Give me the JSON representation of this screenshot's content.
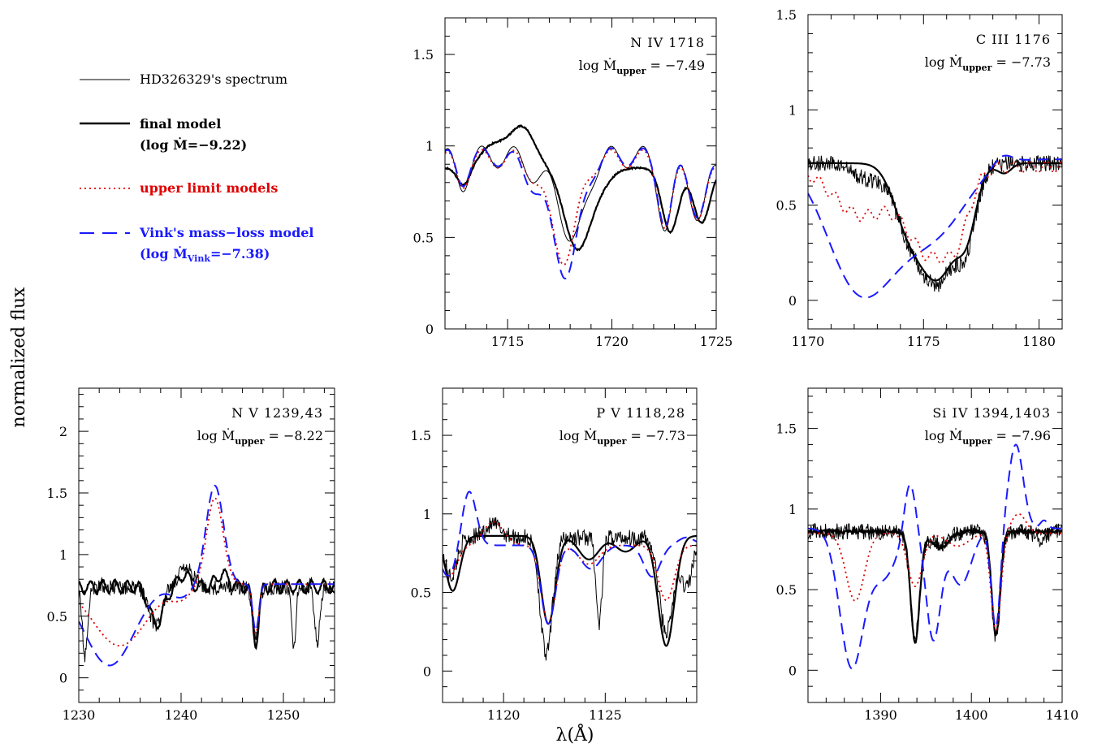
{
  "figure": {
    "ylabel": "normalized flux",
    "xlabel": "λ(Å)"
  },
  "legend": {
    "spectrum": {
      "label": "HD326329's spectrum",
      "color": "#000000"
    },
    "final": {
      "label": "final model",
      "sub": "(log Ṁ=−9.22)",
      "color": "#000000"
    },
    "upper": {
      "label": "upper limit models",
      "color": "#e00000"
    },
    "vink": {
      "label": "Vink's mass−loss model",
      "sub_pre": "(log Ṁ",
      "sub_subscript": "Vink",
      "sub_post": "=−7.38)",
      "color": "#1a1aff"
    }
  },
  "chart_data": [
    {
      "type": "line",
      "id": "n4",
      "title": "N IV 1718",
      "mdot_value": "−7.49",
      "xlim": [
        1712,
        1725
      ],
      "ylim": [
        0,
        1.7
      ],
      "xticks": [
        1715,
        1720,
        1725
      ],
      "yticks": [
        0,
        0.5,
        1,
        1.5
      ],
      "yticklabels": [
        "0",
        "0.5",
        "1",
        "1.5"
      ],
      "lines": [
        {
          "type": "gauss",
          "x": [
            1712,
            1725
          ],
          "base": 0.94,
          "slope": 0,
          "ripple": {
            "amp": 0.06,
            "period": 1.55,
            "phase": 0.6
          },
          "noise": 0,
          "dips": [
            [
              1712.8,
              -0.14,
              0.3
            ],
            [
              1718.15,
              -0.47,
              0.55
            ],
            [
              1722.6,
              -0.38,
              0.35
            ],
            [
              1724.2,
              -0.33,
              0.4
            ],
            [
              1716.6,
              -0.12,
              0.5
            ]
          ]
        },
        {
          "type": "gauss",
          "x": [
            1712,
            1725
          ],
          "base": 0.88,
          "slope": 0,
          "noise": 0.004,
          "seed": 11,
          "dips": [
            [
              1715.7,
              0.22,
              0.6
            ],
            [
              1714.3,
              0.12,
              0.6
            ],
            [
              1718.3,
              -0.42,
              0.6
            ],
            [
              1712.9,
              -0.1,
              0.3
            ],
            [
              1719.3,
              -0.1,
              0.6
            ],
            [
              1722.8,
              -0.35,
              0.4
            ],
            [
              1724.3,
              -0.3,
              0.4
            ]
          ]
        },
        {
          "type": "gauss",
          "x": [
            1712,
            1725
          ],
          "base": 0.93,
          "slope": 0,
          "ripple": {
            "amp": 0.05,
            "period": 1.55,
            "phase": 0.6
          },
          "noise": 0,
          "dips": [
            [
              1712.8,
              -0.12,
              0.3
            ],
            [
              1717.8,
              -0.5,
              0.6
            ],
            [
              1716.8,
              -0.12,
              0.6
            ],
            [
              1722.6,
              -0.36,
              0.35
            ],
            [
              1724.2,
              -0.32,
              0.4
            ]
          ]
        },
        {
          "type": "gauss",
          "x": [
            1712,
            1725
          ],
          "base": 0.94,
          "slope": 0,
          "ripple": {
            "amp": 0.05,
            "period": 1.55,
            "phase": 0.6
          },
          "noise": 0,
          "dips": [
            [
              1712.8,
              -0.12,
              0.3
            ],
            [
              1717.9,
              -0.58,
              0.6
            ],
            [
              1716.7,
              -0.18,
              0.7
            ],
            [
              1722.6,
              -0.36,
              0.35
            ],
            [
              1724.2,
              -0.32,
              0.4
            ]
          ]
        }
      ]
    },
    {
      "type": "line",
      "id": "c3",
      "title": "C III 1176",
      "mdot_value": "−7.73",
      "xlim": [
        1170,
        1181
      ],
      "ylim": [
        -0.15,
        1.5
      ],
      "xticks": [
        1170,
        1175,
        1180
      ],
      "yticks": [
        0,
        0.5,
        1,
        1.5
      ],
      "yticklabels": [
        "0",
        "0.5",
        "1",
        "1.5"
      ],
      "lines": [
        {
          "type": "gauss",
          "x": [
            1170,
            1181
          ],
          "base": 0.72,
          "slope": 0,
          "noise": 0.045,
          "seed": 5,
          "dips": [
            [
              1175.6,
              -0.62,
              0.9
            ],
            [
              1174.2,
              -0.2,
              0.6
            ],
            [
              1176.9,
              -0.25,
              0.4
            ],
            [
              1172.5,
              -0.08,
              0.6
            ]
          ]
        },
        {
          "type": "gauss",
          "x": [
            1170,
            1181
          ],
          "base": 0.72,
          "slope": 0,
          "noise": 0,
          "dips": [
            [
              1175.6,
              -0.6,
              0.9
            ],
            [
              1174.2,
              -0.2,
              0.6
            ],
            [
              1176.9,
              -0.22,
              0.4
            ],
            [
              1178.5,
              -0.05,
              0.3
            ]
          ]
        },
        {
          "type": "gauss",
          "x": [
            1170,
            1181
          ],
          "base": 0.7,
          "slope": 0,
          "noise": 0,
          "ripple": {
            "amp": 0.03,
            "period": 0.7,
            "phase": 0.1
          },
          "dips": [
            [
              1172.3,
              -0.25,
              1.2
            ],
            [
              1175.3,
              -0.45,
              1.0
            ],
            [
              1176.5,
              -0.2,
              0.5
            ]
          ]
        },
        {
          "type": "gauss",
          "x": [
            1170,
            1181
          ],
          "base": 0.74,
          "slope": 0,
          "noise": 0,
          "dips": [
            [
              1172.0,
              -0.55,
              1.3
            ],
            [
              1174.0,
              -0.35,
              1.5
            ],
            [
              1176.0,
              -0.22,
              1.2
            ],
            [
              1178.4,
              0.05,
              0.4
            ]
          ]
        }
      ]
    },
    {
      "type": "line",
      "id": "n5",
      "title": "N V 1239,43",
      "mdot_value": "−8.22",
      "xlim": [
        1230,
        1255
      ],
      "ylim": [
        -0.2,
        2.35
      ],
      "xticks": [
        1230,
        1240,
        1250
      ],
      "yticks": [
        0,
        0.5,
        1,
        1.5,
        2
      ],
      "yticklabels": [
        "0",
        "0.5",
        "1",
        "1.5",
        "2"
      ],
      "lines": [
        {
          "type": "gauss",
          "x": [
            1230,
            1255
          ],
          "base": 0.73,
          "slope": 0,
          "noise": 0.06,
          "seed": 21,
          "dips": [
            [
              1230.6,
              -0.55,
              0.25
            ],
            [
              1237.5,
              -0.3,
              0.6
            ],
            [
              1240.5,
              0.15,
              0.8
            ],
            [
              1247.3,
              -0.4,
              0.3
            ],
            [
              1251.0,
              -0.5,
              0.2
            ],
            [
              1253.3,
              -0.45,
              0.25
            ]
          ]
        },
        {
          "type": "gauss",
          "x": [
            1230,
            1255
          ],
          "base": 0.74,
          "slope": 0,
          "noise": 0.01,
          "seed": 3,
          "ripple": {
            "amp": 0.05,
            "period": 1.2,
            "phase": 0.3
          },
          "dips": [
            [
              1237.6,
              -0.3,
              0.7
            ],
            [
              1240.3,
              0.1,
              0.5
            ],
            [
              1247.3,
              -0.45,
              0.3
            ],
            [
              1244.0,
              0.1,
              0.6
            ]
          ]
        },
        {
          "type": "gauss",
          "x": [
            1230,
            1255
          ],
          "base": 0.76,
          "slope": 0,
          "noise": 0,
          "dips": [
            [
              1234.0,
              -0.5,
              2.6
            ],
            [
              1243.3,
              0.7,
              0.8
            ],
            [
              1247.3,
              -0.4,
              0.3
            ],
            [
              1240.0,
              -0.1,
              1.0
            ]
          ]
        },
        {
          "type": "gauss",
          "x": [
            1230,
            1255
          ],
          "base": 0.76,
          "slope": 0,
          "noise": 0,
          "dips": [
            [
              1233.0,
              -0.66,
              2.4
            ],
            [
              1243.3,
              0.8,
              0.85
            ],
            [
              1247.3,
              -0.38,
              0.3
            ],
            [
              1240.0,
              -0.1,
              1.0
            ]
          ]
        }
      ]
    },
    {
      "type": "line",
      "id": "p5",
      "title": "P V 1118,28",
      "mdot_value": "−7.73",
      "xlim": [
        1117,
        1129.5
      ],
      "ylim": [
        -0.2,
        1.8
      ],
      "xticks": [
        1120,
        1125
      ],
      "yticks": [
        0,
        0.5,
        1,
        1.5
      ],
      "yticklabels": [
        "0",
        "0.5",
        "1",
        "1.5"
      ],
      "lines": [
        {
          "type": "gauss",
          "x": [
            1117,
            1129.5
          ],
          "base": 0.85,
          "slope": 0,
          "noise": 0.055,
          "seed": 42,
          "dips": [
            [
              1117.4,
              -0.25,
              0.3
            ],
            [
              1122.1,
              -0.75,
              0.3
            ],
            [
              1124.7,
              -0.55,
              0.15
            ],
            [
              1128.0,
              -0.6,
              0.35
            ],
            [
              1129.0,
              -0.3,
              0.3
            ],
            [
              1119.5,
              0.08,
              0.4
            ]
          ]
        },
        {
          "type": "gauss",
          "x": [
            1117,
            1129.5
          ],
          "base": 0.86,
          "slope": 0,
          "noise": 0,
          "dips": [
            [
              1117.5,
              -0.35,
              0.35
            ],
            [
              1122.2,
              -0.56,
              0.35
            ],
            [
              1124.2,
              -0.15,
              0.5
            ],
            [
              1128.0,
              -0.7,
              0.4
            ],
            [
              1126.0,
              -0.1,
              0.5
            ]
          ]
        },
        {
          "type": "gauss",
          "x": [
            1117,
            1129.5
          ],
          "base": 0.8,
          "slope": 0,
          "noise": 0,
          "dips": [
            [
              1117.3,
              -0.2,
              0.4
            ],
            [
              1119.5,
              0.15,
              0.5
            ],
            [
              1122.2,
              -0.5,
              0.35
            ],
            [
              1124.2,
              -0.12,
              0.5
            ],
            [
              1128.0,
              -0.35,
              0.4
            ]
          ]
        },
        {
          "type": "gauss",
          "x": [
            1117,
            1129.5
          ],
          "base": 0.8,
          "slope": 0,
          "noise": 0,
          "dips": [
            [
              1117.3,
              -0.2,
              0.4
            ],
            [
              1118.3,
              0.35,
              0.35
            ],
            [
              1122.2,
              -0.5,
              0.35
            ],
            [
              1124.3,
              -0.15,
              0.5
            ],
            [
              1127.3,
              -0.2,
              0.4
            ],
            [
              1129.0,
              0.05,
              0.4
            ]
          ]
        }
      ]
    },
    {
      "type": "line",
      "id": "si4",
      "title": "Si IV 1394,1403",
      "mdot_value": "−7.96",
      "xlim": [
        1382,
        1410
      ],
      "ylim": [
        -0.2,
        1.75
      ],
      "xticks": [
        1390,
        1400,
        1410
      ],
      "yticks": [
        0,
        0.5,
        1,
        1.5
      ],
      "yticklabels": [
        "0",
        "0.5",
        "1",
        "1.5"
      ],
      "lines": [
        {
          "type": "gauss",
          "x": [
            1382,
            1410
          ],
          "base": 0.86,
          "slope": 0,
          "noise": 0.05,
          "seed": 77,
          "dips": [
            [
              1393.8,
              -0.65,
              0.55
            ],
            [
              1402.7,
              -0.65,
              0.5
            ],
            [
              1396.5,
              -0.08,
              1.0
            ],
            [
              1407.5,
              -0.05,
              0.6
            ]
          ]
        },
        {
          "type": "gauss",
          "x": [
            1382,
            1410
          ],
          "base": 0.86,
          "slope": 0,
          "noise": 0.012,
          "seed": 9,
          "dips": [
            [
              1393.8,
              -0.68,
              0.5
            ],
            [
              1402.7,
              -0.64,
              0.45
            ],
            [
              1396.5,
              -0.1,
              1.0
            ]
          ]
        },
        {
          "type": "gauss",
          "x": [
            1382,
            1410
          ],
          "base": 0.85,
          "slope": 0,
          "noise": 0,
          "dips": [
            [
              1387.2,
              -0.42,
              1.0
            ],
            [
              1393.8,
              -0.33,
              0.8
            ],
            [
              1402.7,
              -0.6,
              0.55
            ],
            [
              1405.2,
              0.12,
              0.8
            ],
            [
              1398.5,
              -0.08,
              1.2
            ]
          ]
        },
        {
          "type": "gauss",
          "x": [
            1382,
            1410
          ],
          "base": 0.88,
          "slope": 0,
          "noise": 0,
          "dips": [
            [
              1386.8,
              -0.85,
              1.3
            ],
            [
              1390.3,
              -0.3,
              1.5
            ],
            [
              1393.2,
              0.32,
              0.6
            ],
            [
              1395.8,
              -0.68,
              0.8
            ],
            [
              1398.8,
              -0.35,
              1.2
            ],
            [
              1402.7,
              -0.62,
              0.5
            ],
            [
              1404.9,
              0.52,
              0.8
            ],
            [
              1408.0,
              0.05,
              0.4
            ]
          ]
        }
      ]
    }
  ]
}
